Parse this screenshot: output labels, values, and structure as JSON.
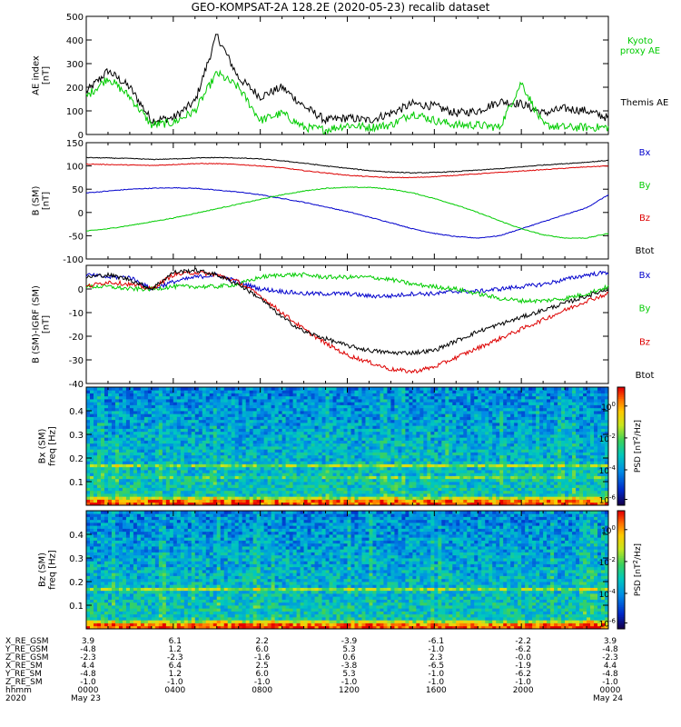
{
  "title": "GEO-KOMPSAT-2A 128.2E (2020-05-23) recalib dataset",
  "colors": {
    "black": "#000000",
    "blue": "#0000cc",
    "green": "#00cc00",
    "red": "#dd0000"
  },
  "chart_data": [
    {
      "type": "line",
      "panel": "AE index",
      "ylabel": "AE index\n[nT]",
      "ylim": [
        0,
        500
      ],
      "yticks": [
        "0",
        "100",
        "200",
        "300",
        "400",
        "500"
      ],
      "legend": [
        {
          "label": "Kyoto proxy AE",
          "color": "#00cc00"
        },
        {
          "label": "Themis AE",
          "color": "#000000"
        }
      ],
      "x": [
        0,
        1,
        2,
        3,
        4,
        5,
        6,
        7,
        8,
        9,
        10,
        11,
        12,
        13,
        14,
        15,
        16,
        17,
        18,
        19,
        20,
        21,
        22,
        23,
        24
      ],
      "series": [
        {
          "name": "Themis AE",
          "color": "#000000",
          "values": [
            180,
            270,
            200,
            60,
            70,
            140,
            420,
            240,
            160,
            200,
            120,
            60,
            70,
            60,
            90,
            130,
            120,
            90,
            100,
            140,
            130,
            90,
            110,
            100,
            70
          ]
        },
        {
          "name": "Kyoto proxy AE",
          "color": "#00cc00",
          "values": [
            160,
            240,
            160,
            40,
            50,
            100,
            260,
            200,
            60,
            90,
            30,
            20,
            40,
            30,
            40,
            90,
            60,
            40,
            40,
            30,
            220,
            40,
            30,
            30,
            30
          ]
        }
      ]
    },
    {
      "type": "line",
      "panel": "B (SM)",
      "ylabel": "B (SM)\n[nT]",
      "ylim": [
        -100,
        150
      ],
      "yticks": [
        "-100",
        "-50",
        "0",
        "50",
        "100",
        "150"
      ],
      "legend": [
        {
          "label": "Bx",
          "color": "#0000cc"
        },
        {
          "label": "By",
          "color": "#00cc00"
        },
        {
          "label": "Bz",
          "color": "#dd0000"
        },
        {
          "label": "Btot",
          "color": "#000000"
        }
      ],
      "x": [
        0,
        1,
        2,
        3,
        4,
        5,
        6,
        7,
        8,
        9,
        10,
        11,
        12,
        13,
        14,
        15,
        16,
        17,
        18,
        19,
        20,
        21,
        22,
        23,
        24
      ],
      "series": [
        {
          "name": "Bx",
          "color": "#0000cc",
          "values": [
            42,
            46,
            50,
            52,
            53,
            52,
            48,
            44,
            38,
            30,
            22,
            12,
            2,
            -10,
            -22,
            -35,
            -45,
            -52,
            -55,
            -50,
            -35,
            -20,
            -5,
            10,
            38
          ]
        },
        {
          "name": "By",
          "color": "#00cc00",
          "values": [
            -40,
            -35,
            -28,
            -20,
            -12,
            -2,
            8,
            18,
            28,
            38,
            46,
            52,
            54,
            54,
            50,
            42,
            30,
            16,
            0,
            -18,
            -35,
            -48,
            -55,
            -55,
            -45
          ]
        },
        {
          "name": "Bz",
          "color": "#dd0000",
          "values": [
            104,
            103,
            102,
            101,
            103,
            105,
            105,
            103,
            100,
            96,
            90,
            85,
            80,
            77,
            75,
            75,
            77,
            80,
            83,
            86,
            89,
            92,
            95,
            98,
            100
          ]
        },
        {
          "name": "Btot",
          "color": "#000000",
          "values": [
            118,
            117,
            116,
            114,
            115,
            117,
            118,
            117,
            115,
            111,
            106,
            100,
            95,
            90,
            87,
            85,
            86,
            88,
            91,
            94,
            98,
            102,
            105,
            108,
            112
          ]
        }
      ]
    },
    {
      "type": "line",
      "panel": "B (SM)-IGRF (SM)",
      "ylabel": "B (SM)-IGRF (SM)\n[nT]",
      "ylim": [
        -40,
        10
      ],
      "yticks": [
        "-40",
        "-30",
        "-20",
        "-10",
        "0"
      ],
      "legend": [
        {
          "label": "Bx",
          "color": "#0000cc"
        },
        {
          "label": "By",
          "color": "#00cc00"
        },
        {
          "label": "Bz",
          "color": "#dd0000"
        },
        {
          "label": "Btot",
          "color": "#000000"
        }
      ],
      "x": [
        0,
        1,
        2,
        3,
        4,
        5,
        6,
        7,
        8,
        9,
        10,
        11,
        12,
        13,
        14,
        15,
        16,
        17,
        18,
        19,
        20,
        21,
        22,
        23,
        24
      ],
      "series": [
        {
          "name": "Bx",
          "color": "#0000cc",
          "values": [
            6,
            5,
            5,
            0,
            3,
            5,
            6,
            3,
            0,
            -1,
            -2,
            -2,
            -2,
            -3,
            -3,
            -2,
            -2,
            -1,
            -1,
            0,
            1,
            2,
            4,
            6,
            7
          ]
        },
        {
          "name": "By",
          "color": "#00cc00",
          "values": [
            1,
            1,
            0,
            0,
            1,
            1,
            1,
            2,
            5,
            6,
            6,
            5,
            5,
            5,
            4,
            2,
            1,
            0,
            -2,
            -4,
            -5,
            -5,
            -4,
            -2,
            1
          ]
        },
        {
          "name": "Bz",
          "color": "#dd0000",
          "values": [
            1,
            3,
            2,
            0,
            6,
            7,
            6,
            3,
            -3,
            -10,
            -17,
            -23,
            -28,
            -31,
            -34,
            -35,
            -33,
            -29,
            -25,
            -21,
            -17,
            -13,
            -9,
            -5,
            -2
          ]
        },
        {
          "name": "Btot",
          "color": "#000000",
          "values": [
            5,
            6,
            4,
            0,
            7,
            8,
            6,
            2,
            -4,
            -12,
            -18,
            -21,
            -24,
            -26,
            -27,
            -27,
            -26,
            -22,
            -18,
            -15,
            -12,
            -9,
            -6,
            -3,
            0
          ]
        }
      ]
    },
    {
      "type": "heatmap",
      "panel": "Bx (SM) spectrogram",
      "ylabel": "Bx (SM)\nfreq [Hz]",
      "ylim": [
        0,
        0.5
      ],
      "yticks": [
        "0.1",
        "0.2",
        "0.3",
        "0.4"
      ],
      "colorbar_label": "PSD [nT^2/Hz]",
      "colorbar_ticks": [
        "10^0",
        "10^-2",
        "10^-4",
        "10^-6"
      ]
    },
    {
      "type": "heatmap",
      "panel": "Bz (SM) spectrogram",
      "ylabel": "Bz (SM)\nfreq [Hz]",
      "ylim": [
        0,
        0.5
      ],
      "yticks": [
        "0.1",
        "0.2",
        "0.3",
        "0.4"
      ],
      "colorbar_label": "PSD [nT^2/Hz]",
      "colorbar_ticks": [
        "10^0",
        "10^-2",
        "10^-4",
        "10^-6"
      ]
    }
  ],
  "xaxis_table": {
    "rows": [
      {
        "label": "X_RE_GSM",
        "values": [
          "3.9",
          "6.1",
          "2.2",
          "-3.9",
          "-6.1",
          "-2.2",
          "3.9"
        ]
      },
      {
        "label": "Y_RE_GSM",
        "values": [
          "-4.8",
          "1.2",
          "6.0",
          "5.3",
          "-1.0",
          "-6.2",
          "-4.8"
        ]
      },
      {
        "label": "Z_RE_GSM",
        "values": [
          "-2.3",
          "-2.3",
          "-1.6",
          "0.6",
          "2.3",
          "-0.0",
          "-2.3"
        ]
      },
      {
        "label": "X_RE_SM",
        "values": [
          "4.4",
          "6.4",
          "2.5",
          "-3.8",
          "-6.5",
          "-1.9",
          "4.4"
        ]
      },
      {
        "label": "Y_RE_SM",
        "values": [
          "-4.8",
          "1.2",
          "6.0",
          "5.3",
          "-1.0",
          "-6.2",
          "-4.8"
        ]
      },
      {
        "label": "Z_RE_SM",
        "values": [
          "-1.0",
          "-1.0",
          "-1.0",
          "-1.0",
          "-1.0",
          "-1.0",
          "-1.0"
        ]
      },
      {
        "label": "hhmm",
        "values": [
          "0000",
          "0400",
          "0800",
          "1200",
          "1600",
          "2000",
          "0000"
        ]
      }
    ],
    "year": "2020",
    "date_start": "May 23",
    "date_end": "May 24"
  }
}
